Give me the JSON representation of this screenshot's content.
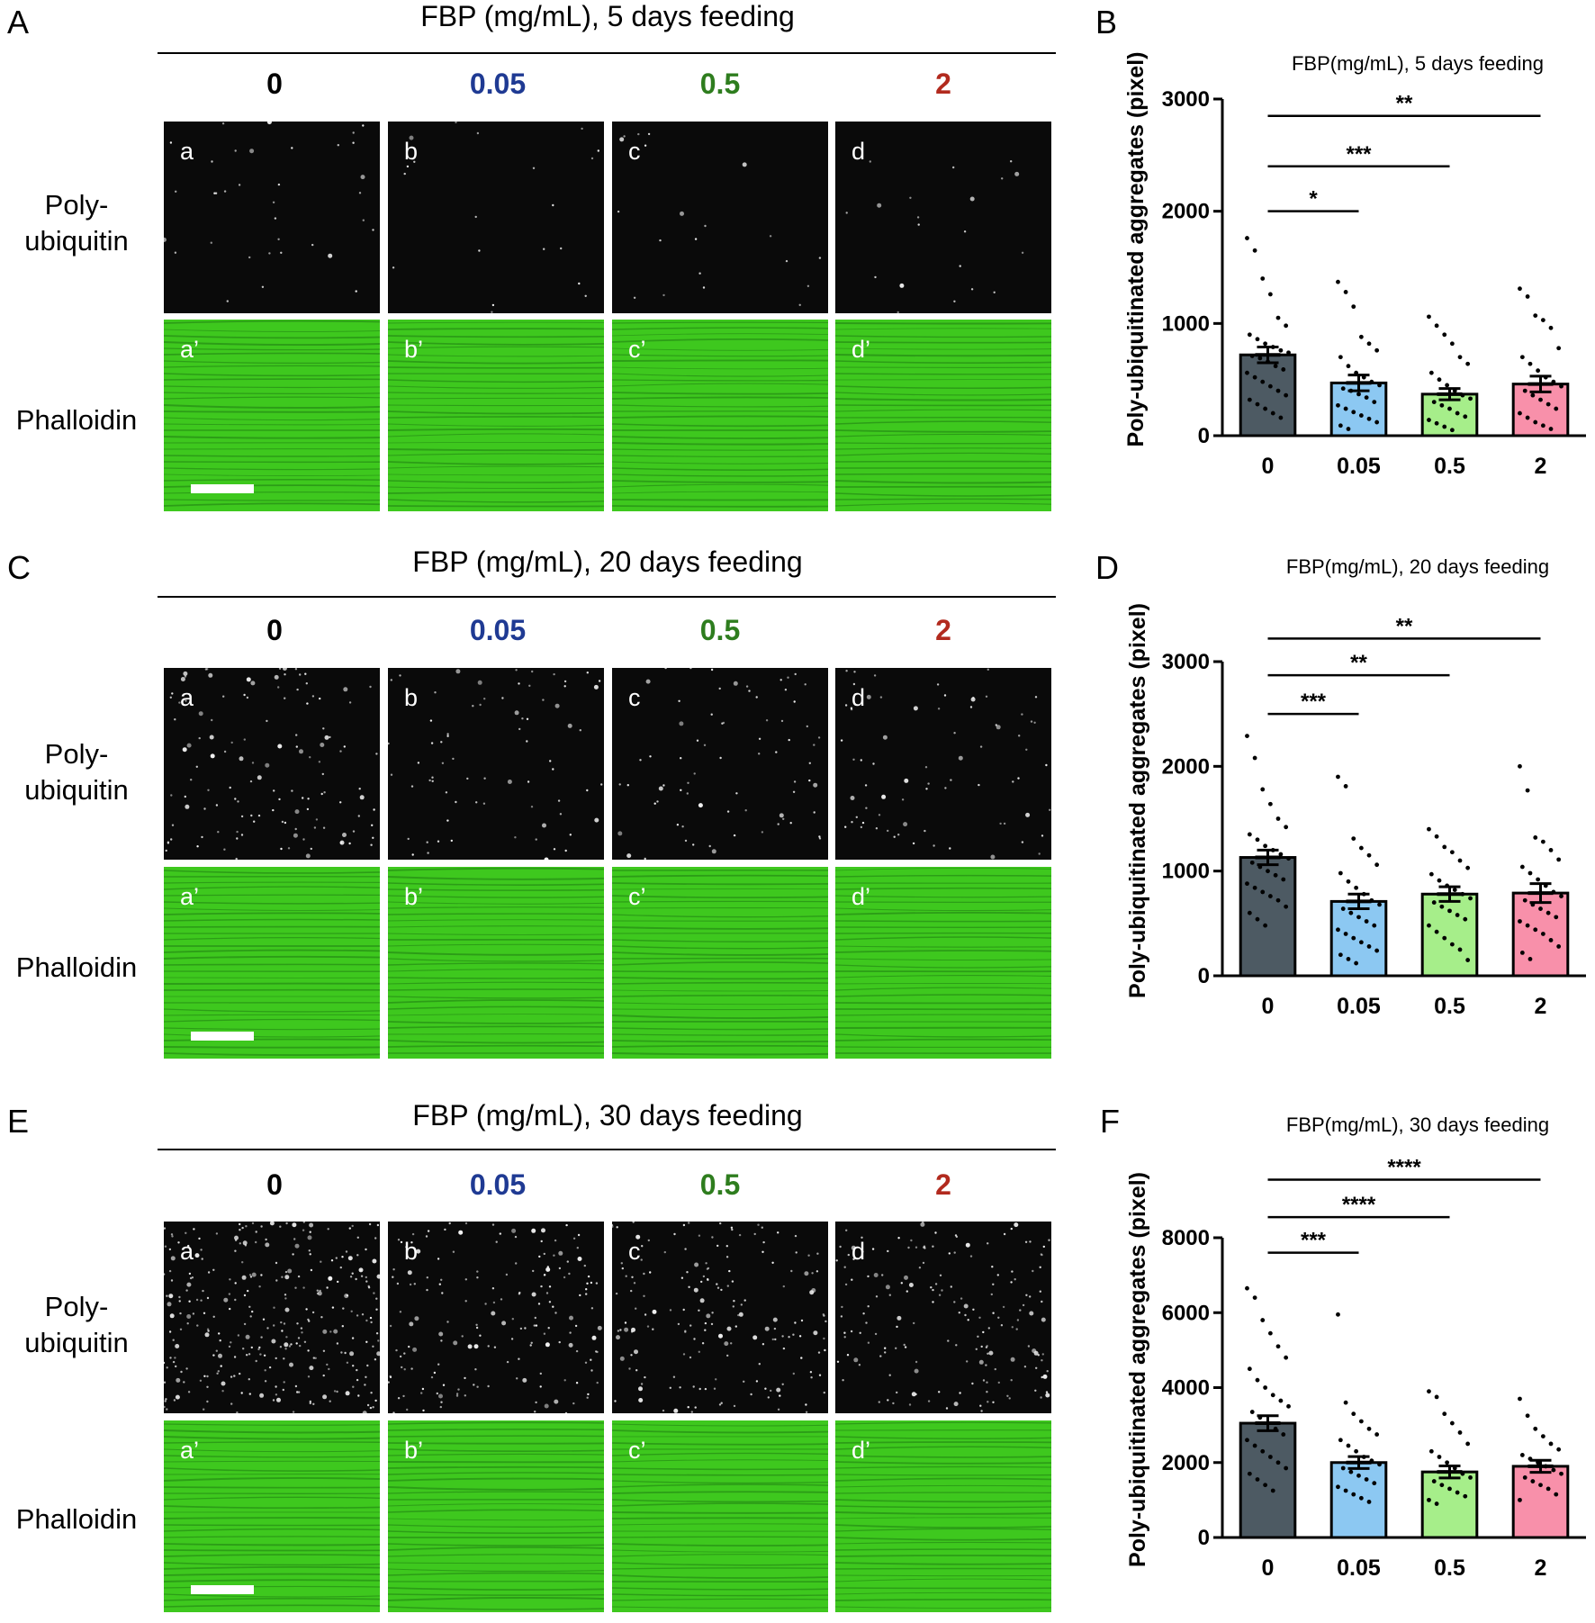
{
  "concentrations": [
    "0",
    "0.05",
    "0.5",
    "2"
  ],
  "concentration_colors": [
    "#000000",
    "#1f3a93",
    "#2e7d1e",
    "#b22a1e"
  ],
  "row_labels": {
    "poly_a": "Poly-",
    "poly_b": "ubiquitin",
    "phalloidin": "Phalloidin"
  },
  "tile_letters": [
    "a",
    "b",
    "c",
    "d"
  ],
  "tile_letters_prime": [
    "a’",
    "b’",
    "c’",
    "d’"
  ],
  "panels": {
    "A": {
      "letter": "A",
      "title": "FBP (mg/mL), 5 days feeding"
    },
    "C": {
      "letter": "C",
      "title": "FBP (mg/mL), 20 days feeding"
    },
    "E": {
      "letter": "E",
      "title": "FBP (mg/mL), 30 days feeding"
    },
    "B": {
      "letter": "B"
    },
    "D": {
      "letter": "D"
    },
    "F": {
      "letter": "F"
    }
  },
  "colors": {
    "bar_0": "#4d5a63",
    "bar_005": "#8cc8f2",
    "bar_05": "#a6ee8a",
    "bar_2": "#f890aa",
    "phalloidin": "#3ec81e"
  },
  "chart_data": [
    {
      "id": "B",
      "type": "bar",
      "title": "FBP(mg/mL), 5 days feeding",
      "ylabel": "Poly-ubiquitinated aggregates (pixel)",
      "categories": [
        "0",
        "0.05",
        "0.5",
        "2"
      ],
      "values": [
        720,
        470,
        370,
        460
      ],
      "sem": [
        70,
        70,
        50,
        70
      ],
      "ylim": [
        0,
        3000
      ],
      "yticks": [
        0,
        1000,
        2000,
        3000
      ],
      "points": [
        [
          1760,
          1650,
          1400,
          1260,
          1050,
          980,
          900,
          860,
          820,
          790,
          760,
          740,
          710,
          690,
          660,
          620,
          590,
          560,
          520,
          480,
          440,
          400,
          360,
          320,
          280,
          240,
          200,
          160
        ],
        [
          1370,
          1280,
          1150,
          880,
          820,
          760,
          700,
          620,
          560,
          520,
          480,
          450,
          420,
          400,
          370,
          340,
          300,
          270,
          240,
          210,
          180,
          150,
          120,
          90,
          60
        ],
        [
          1060,
          980,
          900,
          820,
          700,
          640,
          560,
          500,
          450,
          400,
          360,
          330,
          300,
          270,
          240,
          200,
          170,
          140,
          110,
          80,
          50
        ],
        [
          1310,
          1240,
          1070,
          1030,
          960,
          780,
          700,
          640,
          580,
          520,
          480,
          440,
          400,
          360,
          320,
          280,
          240,
          200,
          160,
          120,
          90,
          60
        ]
      ],
      "significance": [
        {
          "from": 0,
          "to": 1,
          "label": "*",
          "y": 2000
        },
        {
          "from": 0,
          "to": 2,
          "label": "***",
          "y": 2400
        },
        {
          "from": 0,
          "to": 3,
          "label": "**",
          "y": 2850
        }
      ]
    },
    {
      "id": "D",
      "type": "bar",
      "title": "FBP(mg/mL), 20 days feeding",
      "ylabel": "Poly-ubiquitinated aggregates (pixel)",
      "categories": [
        "0",
        "0.05",
        "0.5",
        "2"
      ],
      "values": [
        1130,
        710,
        780,
        790
      ],
      "sem": [
        70,
        70,
        70,
        90
      ],
      "ylim": [
        0,
        3000
      ],
      "yticks": [
        0,
        1000,
        2000,
        3000
      ],
      "points": [
        [
          2290,
          2080,
          1780,
          1640,
          1500,
          1420,
          1350,
          1300,
          1240,
          1200,
          1160,
          1120,
          1080,
          1040,
          1000,
          960,
          920,
          880,
          840,
          800,
          760,
          720,
          660,
          600,
          540,
          480
        ],
        [
          1900,
          1810,
          1310,
          1220,
          1150,
          1060,
          980,
          900,
          840,
          780,
          720,
          680,
          640,
          600,
          560,
          520,
          480,
          440,
          400,
          360,
          320,
          280,
          240,
          200,
          160,
          120
        ],
        [
          1400,
          1330,
          1230,
          1180,
          1100,
          1030,
          970,
          910,
          860,
          820,
          780,
          740,
          700,
          660,
          620,
          580,
          540,
          480,
          420,
          360,
          300,
          250,
          150
        ],
        [
          2000,
          1770,
          1320,
          1280,
          1200,
          1110,
          1040,
          980,
          920,
          860,
          800,
          760,
          720,
          680,
          640,
          600,
          560,
          520,
          480,
          440,
          400,
          340,
          280,
          220,
          160
        ]
      ],
      "significance": [
        {
          "from": 0,
          "to": 1,
          "label": "***",
          "y": 2500
        },
        {
          "from": 0,
          "to": 2,
          "label": "**",
          "y": 2870
        },
        {
          "from": 0,
          "to": 3,
          "label": "**",
          "y": 3220
        }
      ]
    },
    {
      "id": "F",
      "type": "bar",
      "title": "FBP(mg/mL), 30 days feeding",
      "ylabel": "Poly-ubiquitinated aggregates (pixel)",
      "categories": [
        "0",
        "0.05",
        "0.5",
        "2"
      ],
      "values": [
        3050,
        2000,
        1750,
        1900
      ],
      "sem": [
        200,
        160,
        160,
        160
      ],
      "ylim": [
        0,
        8000
      ],
      "yticks": [
        0,
        2000,
        4000,
        6000,
        8000
      ],
      "points": [
        [
          6650,
          6400,
          5800,
          5450,
          5100,
          4800,
          4500,
          4200,
          4000,
          3800,
          3650,
          3500,
          3350,
          3200,
          3050,
          2900,
          2750,
          2600,
          2450,
          2300,
          2150,
          2000,
          1850,
          1700,
          1550,
          1400,
          1250
        ],
        [
          5950,
          3600,
          3300,
          3100,
          2900,
          2750,
          2600,
          2450,
          2300,
          2150,
          2050,
          1950,
          1850,
          1750,
          1650,
          1550,
          1450,
          1350,
          1250,
          1150,
          1050,
          950
        ],
        [
          3900,
          3750,
          3300,
          3050,
          2800,
          2500,
          2300,
          2150,
          2000,
          1850,
          1700,
          1600,
          1500,
          1400,
          1300,
          1200,
          1100,
          1000,
          900
        ],
        [
          3700,
          3250,
          2900,
          2700,
          2500,
          2350,
          2200,
          2100,
          2000,
          1900,
          1800,
          1700,
          1600,
          1500,
          1400,
          1300,
          1150,
          1000
        ]
      ],
      "significance": [
        {
          "from": 0,
          "to": 1,
          "label": "***",
          "y": 7600
        },
        {
          "from": 0,
          "to": 2,
          "label": "****",
          "y": 8550
        },
        {
          "from": 0,
          "to": 3,
          "label": "****",
          "y": 9550
        }
      ]
    }
  ]
}
